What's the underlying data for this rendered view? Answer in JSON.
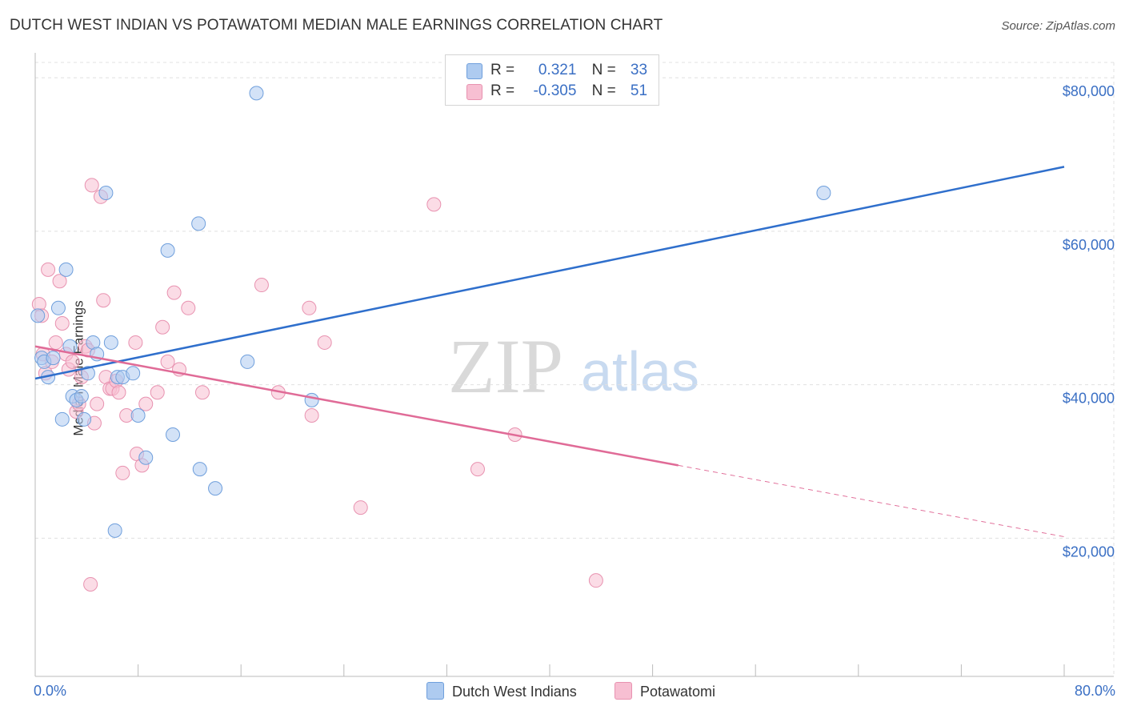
{
  "title": "DUTCH WEST INDIAN VS POTAWATOMI MEDIAN MALE EARNINGS CORRELATION CHART",
  "source": "Source: ZipAtlas.com",
  "watermark": {
    "zip": "ZIP",
    "atlas": "atlas"
  },
  "legend": {
    "rows": [
      {
        "r_label": "R =",
        "r_value": "0.321",
        "n_label": "N =",
        "n_value": "33"
      },
      {
        "r_label": "R =",
        "r_value": "-0.305",
        "n_label": "N =",
        "n_value": "51"
      }
    ]
  },
  "bottom_legend": {
    "series1": "Dutch West Indians",
    "series2": "Potawatomi"
  },
  "colors": {
    "blue_fill": "#aecbf0",
    "blue_stroke": "#6f9fdc",
    "blue_line": "#2f6fcc",
    "pink_fill": "#f7bfd2",
    "pink_stroke": "#e892b0",
    "pink_line": "#e06b97",
    "axis_text": "#3a6fc4",
    "grid": "#e0e0e0"
  },
  "chart_data": {
    "type": "scatter",
    "title": "DUTCH WEST INDIAN VS POTAWATOMI MEDIAN MALE EARNINGS CORRELATION CHART",
    "xlabel": "",
    "ylabel": "Median Male Earnings",
    "xlim": [
      0,
      80
    ],
    "ylim": [
      2000,
      82000
    ],
    "x_tick_labels": [
      "0.0%",
      "80.0%"
    ],
    "y_ticks": [
      20000,
      40000,
      60000,
      80000
    ],
    "y_tick_labels": [
      "$20,000",
      "$40,000",
      "$60,000",
      "$80,000"
    ],
    "grid": true,
    "legend_placement": "top-center",
    "series": [
      {
        "name": "Dutch West Indians",
        "points": [
          [
            0.2,
            49000
          ],
          [
            0.5,
            43500
          ],
          [
            0.7,
            43000
          ],
          [
            1.0,
            41000
          ],
          [
            1.4,
            43500
          ],
          [
            1.8,
            50000
          ],
          [
            2.1,
            35500
          ],
          [
            2.4,
            55000
          ],
          [
            2.7,
            45000
          ],
          [
            2.9,
            38500
          ],
          [
            3.2,
            38000
          ],
          [
            3.6,
            38500
          ],
          [
            3.8,
            35500
          ],
          [
            4.1,
            41500
          ],
          [
            4.5,
            45500
          ],
          [
            4.8,
            44000
          ],
          [
            5.5,
            65000
          ],
          [
            5.9,
            45500
          ],
          [
            6.2,
            21000
          ],
          [
            6.4,
            41000
          ],
          [
            6.8,
            41000
          ],
          [
            7.6,
            41500
          ],
          [
            8.0,
            36000
          ],
          [
            8.6,
            30500
          ],
          [
            10.3,
            57500
          ],
          [
            10.7,
            33500
          ],
          [
            12.7,
            61000
          ],
          [
            12.8,
            29000
          ],
          [
            14.0,
            26500
          ],
          [
            16.5,
            43000
          ],
          [
            17.2,
            78000
          ],
          [
            21.5,
            38000
          ],
          [
            61.3,
            65000
          ]
        ]
      },
      {
        "name": "Potawatomi",
        "points": [
          [
            0.3,
            50500
          ],
          [
            0.5,
            49000
          ],
          [
            0.6,
            44000
          ],
          [
            1.0,
            55000
          ],
          [
            1.3,
            43000
          ],
          [
            1.6,
            45500
          ],
          [
            1.9,
            53500
          ],
          [
            2.1,
            48000
          ],
          [
            2.4,
            44000
          ],
          [
            2.6,
            42000
          ],
          [
            2.9,
            43000
          ],
          [
            3.2,
            36500
          ],
          [
            3.4,
            37500
          ],
          [
            3.6,
            41000
          ],
          [
            3.9,
            45000
          ],
          [
            4.1,
            44500
          ],
          [
            4.3,
            14000
          ],
          [
            4.4,
            66000
          ],
          [
            4.6,
            35000
          ],
          [
            4.8,
            37500
          ],
          [
            5.1,
            64500
          ],
          [
            5.3,
            51000
          ],
          [
            5.5,
            41000
          ],
          [
            5.8,
            39500
          ],
          [
            6.0,
            39500
          ],
          [
            6.3,
            40500
          ],
          [
            6.5,
            39000
          ],
          [
            6.8,
            28500
          ],
          [
            7.1,
            36000
          ],
          [
            7.8,
            45500
          ],
          [
            7.9,
            31000
          ],
          [
            8.3,
            29500
          ],
          [
            8.6,
            37500
          ],
          [
            9.5,
            39000
          ],
          [
            9.9,
            47500
          ],
          [
            10.3,
            43000
          ],
          [
            10.8,
            52000
          ],
          [
            11.2,
            42000
          ],
          [
            11.9,
            50000
          ],
          [
            13.0,
            39000
          ],
          [
            17.6,
            53000
          ],
          [
            18.9,
            39000
          ],
          [
            21.3,
            50000
          ],
          [
            21.5,
            36000
          ],
          [
            22.5,
            45500
          ],
          [
            25.3,
            24000
          ],
          [
            31.0,
            63500
          ],
          [
            34.4,
            29000
          ],
          [
            37.3,
            33500
          ],
          [
            43.6,
            14500
          ],
          [
            0.8,
            41500
          ]
        ]
      }
    ],
    "trend_lines": [
      {
        "series": "Dutch West Indians",
        "x0": 0,
        "y0": 40800,
        "x1": 80,
        "y1": 68400
      },
      {
        "series": "Potawatomi",
        "x0": 0,
        "y0": 45000,
        "x1": 50,
        "y1": 29500,
        "dashed_to": {
          "x": 80,
          "y": 20200
        }
      }
    ]
  }
}
